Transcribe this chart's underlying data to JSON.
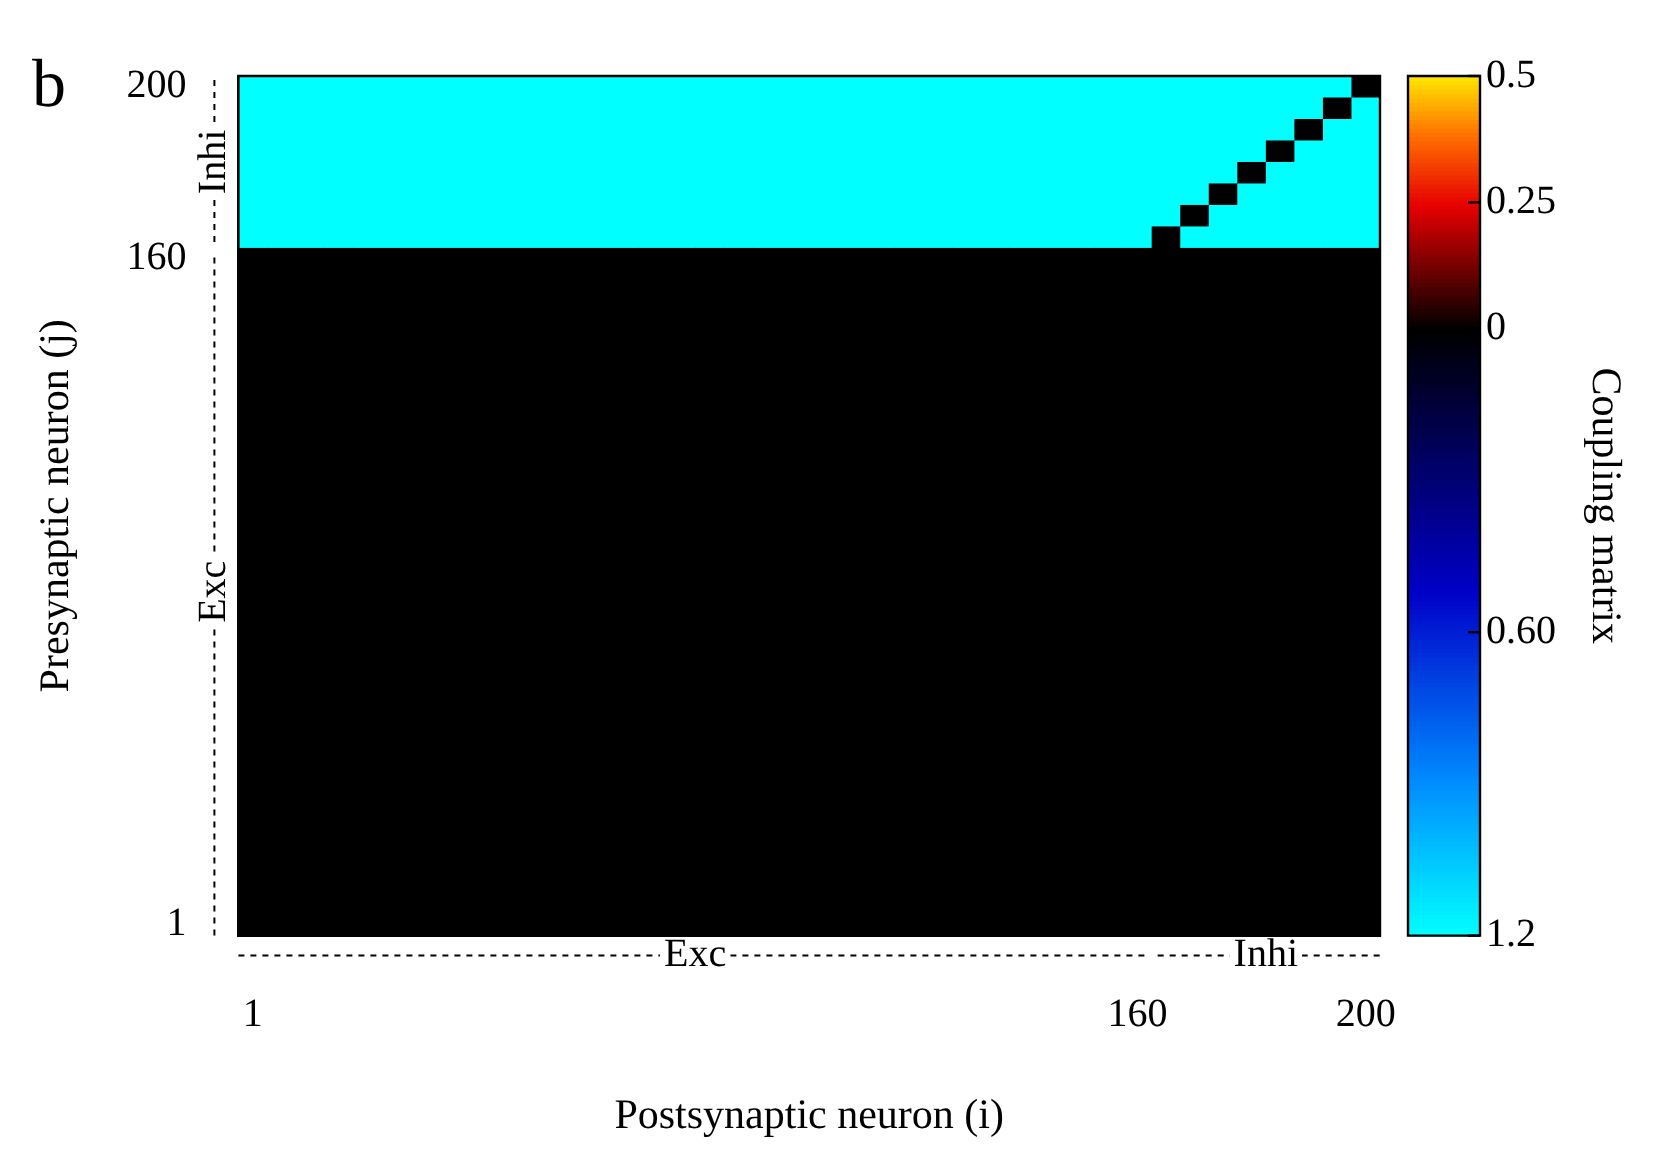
{
  "chart_data": {
    "type": "heatmap",
    "xlabel": "Postsynaptic neuron (i)",
    "ylabel": "Presynaptic neuron (j)",
    "clabel": "Coupling matrix",
    "annotations": [
      "b",
      "Exc",
      "Inhi",
      "Exc",
      "Inhi"
    ],
    "categories": [
      "1",
      null,
      null,
      null,
      null,
      null,
      null,
      null,
      null,
      null,
      null,
      null,
      null,
      null,
      null,
      null,
      null,
      null,
      null,
      null,
      null,
      null,
      null,
      null,
      null,
      null,
      null,
      null,
      null,
      null,
      null,
      "160",
      null,
      null,
      null,
      null,
      null,
      null,
      null,
      "200"
    ],
    "y_categories": [
      "200",
      null,
      null,
      null,
      null,
      null,
      null,
      null,
      "160",
      null,
      null,
      null,
      null,
      null,
      null,
      null,
      null,
      null,
      null,
      null,
      null,
      null,
      null,
      null,
      null,
      null,
      null,
      null,
      null,
      null,
      null,
      null,
      null,
      null,
      null,
      null,
      null,
      null,
      null,
      "1"
    ],
    "clim": [
      -1.2,
      0.5
    ],
    "cticks": [
      {
        "value": -1.2,
        "label": "1.2"
      },
      {
        "value": -0.6,
        "label": "0.60"
      },
      0,
      0.25,
      0.5
    ],
    "cells": [
      [
        -1.2,
        -1.2,
        -1.2,
        -1.2,
        -1.2,
        -1.2,
        -1.2,
        -1.2,
        -1.2,
        -1.2,
        -1.2,
        -1.2,
        -1.2,
        -1.2,
        -1.2,
        -1.2,
        -1.2,
        -1.2,
        -1.2,
        -1.2,
        -1.2,
        -1.2,
        -1.2,
        -1.2,
        -1.2,
        -1.2,
        -1.2,
        -1.2,
        -1.2,
        -1.2,
        -1.2,
        -1.2,
        -1.2,
        -1.2,
        -1.2,
        -1.2,
        -1.2,
        -1.2,
        -1.2,
        0
      ],
      [
        -1.2,
        -1.2,
        -1.2,
        -1.2,
        -1.2,
        -1.2,
        -1.2,
        -1.2,
        -1.2,
        -1.2,
        -1.2,
        -1.2,
        -1.2,
        -1.2,
        -1.2,
        -1.2,
        -1.2,
        -1.2,
        -1.2,
        -1.2,
        -1.2,
        -1.2,
        -1.2,
        -1.2,
        -1.2,
        -1.2,
        -1.2,
        -1.2,
        -1.2,
        -1.2,
        -1.2,
        -1.2,
        -1.2,
        -1.2,
        -1.2,
        -1.2,
        -1.2,
        -1.2,
        0,
        -1.2
      ],
      [
        -1.2,
        -1.2,
        -1.2,
        -1.2,
        -1.2,
        -1.2,
        -1.2,
        -1.2,
        -1.2,
        -1.2,
        -1.2,
        -1.2,
        -1.2,
        -1.2,
        -1.2,
        -1.2,
        -1.2,
        -1.2,
        -1.2,
        -1.2,
        -1.2,
        -1.2,
        -1.2,
        -1.2,
        -1.2,
        -1.2,
        -1.2,
        -1.2,
        -1.2,
        -1.2,
        -1.2,
        -1.2,
        -1.2,
        -1.2,
        -1.2,
        -1.2,
        -1.2,
        0,
        -1.2,
        -1.2
      ],
      [
        -1.2,
        -1.2,
        -1.2,
        -1.2,
        -1.2,
        -1.2,
        -1.2,
        -1.2,
        -1.2,
        -1.2,
        -1.2,
        -1.2,
        -1.2,
        -1.2,
        -1.2,
        -1.2,
        -1.2,
        -1.2,
        -1.2,
        -1.2,
        -1.2,
        -1.2,
        -1.2,
        -1.2,
        -1.2,
        -1.2,
        -1.2,
        -1.2,
        -1.2,
        -1.2,
        -1.2,
        -1.2,
        -1.2,
        -1.2,
        -1.2,
        -1.2,
        0,
        -1.2,
        -1.2,
        -1.2
      ],
      [
        -1.2,
        -1.2,
        -1.2,
        -1.2,
        -1.2,
        -1.2,
        -1.2,
        -1.2,
        -1.2,
        -1.2,
        -1.2,
        -1.2,
        -1.2,
        -1.2,
        -1.2,
        -1.2,
        -1.2,
        -1.2,
        -1.2,
        -1.2,
        -1.2,
        -1.2,
        -1.2,
        -1.2,
        -1.2,
        -1.2,
        -1.2,
        -1.2,
        -1.2,
        -1.2,
        -1.2,
        -1.2,
        -1.2,
        -1.2,
        -1.2,
        0,
        -1.2,
        -1.2,
        -1.2,
        -1.2
      ],
      [
        -1.2,
        -1.2,
        -1.2,
        -1.2,
        -1.2,
        -1.2,
        -1.2,
        -1.2,
        -1.2,
        -1.2,
        -1.2,
        -1.2,
        -1.2,
        -1.2,
        -1.2,
        -1.2,
        -1.2,
        -1.2,
        -1.2,
        -1.2,
        -1.2,
        -1.2,
        -1.2,
        -1.2,
        -1.2,
        -1.2,
        -1.2,
        -1.2,
        -1.2,
        -1.2,
        -1.2,
        -1.2,
        -1.2,
        -1.2,
        0,
        -1.2,
        -1.2,
        -1.2,
        -1.2,
        -1.2
      ],
      [
        -1.2,
        -1.2,
        -1.2,
        -1.2,
        -1.2,
        -1.2,
        -1.2,
        -1.2,
        -1.2,
        -1.2,
        -1.2,
        -1.2,
        -1.2,
        -1.2,
        -1.2,
        -1.2,
        -1.2,
        -1.2,
        -1.2,
        -1.2,
        -1.2,
        -1.2,
        -1.2,
        -1.2,
        -1.2,
        -1.2,
        -1.2,
        -1.2,
        -1.2,
        -1.2,
        -1.2,
        -1.2,
        -1.2,
        0,
        -1.2,
        -1.2,
        -1.2,
        -1.2,
        -1.2,
        -1.2
      ],
      [
        -1.2,
        -1.2,
        -1.2,
        -1.2,
        -1.2,
        -1.2,
        -1.2,
        -1.2,
        -1.2,
        -1.2,
        -1.2,
        -1.2,
        -1.2,
        -1.2,
        -1.2,
        -1.2,
        -1.2,
        -1.2,
        -1.2,
        -1.2,
        -1.2,
        -1.2,
        -1.2,
        -1.2,
        -1.2,
        -1.2,
        -1.2,
        -1.2,
        -1.2,
        -1.2,
        -1.2,
        -1.2,
        0,
        -1.2,
        -1.2,
        -1.2,
        -1.2,
        -1.2,
        -1.2,
        -1.2
      ],
      [
        0,
        0,
        0,
        0,
        0,
        0,
        0,
        0,
        0,
        0,
        0,
        0,
        0,
        0,
        0,
        0,
        0,
        0,
        0,
        0,
        0,
        0,
        0,
        0,
        0,
        0,
        0,
        0,
        0,
        0,
        0,
        0,
        0,
        0,
        0,
        0,
        0,
        0,
        0,
        0
      ],
      [
        0,
        0,
        0,
        0,
        0,
        0,
        0,
        0,
        0,
        0,
        0,
        0,
        0,
        0,
        0,
        0,
        0,
        0,
        0,
        0,
        0,
        0,
        0,
        0,
        0,
        0,
        0,
        0,
        0,
        0,
        0,
        0,
        0,
        0,
        0,
        0,
        0,
        0,
        0,
        0
      ],
      [
        0,
        0,
        0,
        0,
        0,
        0,
        0,
        0,
        0,
        0,
        0,
        0,
        0,
        0,
        0,
        0,
        0,
        0,
        0,
        0,
        0,
        0,
        0,
        0,
        0,
        0,
        0,
        0,
        0,
        0,
        0,
        0,
        0,
        0,
        0,
        0,
        0,
        0,
        0,
        0
      ],
      [
        0,
        0,
        0,
        0,
        0,
        0,
        0,
        0,
        0,
        0,
        0,
        0,
        0,
        0,
        0,
        0,
        0,
        0,
        0,
        0,
        0,
        0,
        0,
        0,
        0,
        0,
        0,
        0,
        0,
        0,
        0,
        0,
        0,
        0,
        0,
        0,
        0,
        0,
        0,
        0
      ],
      [
        0,
        0,
        0,
        0,
        0,
        0,
        0,
        0,
        0,
        0,
        0,
        0,
        0,
        0,
        0,
        0,
        0,
        0,
        0,
        0,
        0,
        0,
        0,
        0,
        0,
        0,
        0,
        0,
        0,
        0,
        0,
        0,
        0,
        0,
        0,
        0,
        0,
        0,
        0,
        0
      ],
      [
        0,
        0,
        0,
        0,
        0,
        0,
        0,
        0,
        0,
        0,
        0,
        0,
        0,
        0,
        0,
        0,
        0,
        0,
        0,
        0,
        0,
        0,
        0,
        0,
        0,
        0,
        0,
        0,
        0,
        0,
        0,
        0,
        0,
        0,
        0,
        0,
        0,
        0,
        0,
        0
      ],
      [
        0,
        0,
        0,
        0,
        0,
        0,
        0,
        0,
        0,
        0,
        0,
        0,
        0,
        0,
        0,
        0,
        0,
        0,
        0,
        0,
        0,
        0,
        0,
        0,
        0,
        0,
        0,
        0,
        0,
        0,
        0,
        0,
        0,
        0,
        0,
        0,
        0,
        0,
        0,
        0
      ],
      [
        0,
        0,
        0,
        0,
        0,
        0,
        0,
        0,
        0,
        0,
        0,
        0,
        0,
        0,
        0,
        0,
        0,
        0,
        0,
        0,
        0,
        0,
        0,
        0,
        0,
        0,
        0,
        0,
        0,
        0,
        0,
        0,
        0,
        0,
        0,
        0,
        0,
        0,
        0,
        0
      ],
      [
        0,
        0,
        0,
        0,
        0,
        0,
        0,
        0,
        0,
        0,
        0,
        0,
        0,
        0,
        0,
        0,
        0,
        0,
        0,
        0,
        0,
        0,
        0,
        0,
        0,
        0,
        0,
        0,
        0,
        0,
        0,
        0,
        0,
        0,
        0,
        0,
        0,
        0,
        0,
        0
      ],
      [
        0,
        0,
        0,
        0,
        0,
        0,
        0,
        0,
        0,
        0,
        0,
        0,
        0,
        0,
        0,
        0,
        0,
        0,
        0,
        0,
        0,
        0,
        0,
        0,
        0,
        0,
        0,
        0,
        0,
        0,
        0,
        0,
        0,
        0,
        0,
        0,
        0,
        0,
        0,
        0
      ],
      [
        0,
        0,
        0,
        0,
        0,
        0,
        0,
        0,
        0,
        0,
        0,
        0,
        0,
        0,
        0,
        0,
        0,
        0,
        0,
        0,
        0,
        0,
        0,
        0,
        0,
        0,
        0,
        0,
        0,
        0,
        0,
        0,
        0,
        0,
        0,
        0,
        0,
        0,
        0,
        0
      ],
      [
        0,
        0,
        0,
        0,
        0,
        0,
        0,
        0,
        0,
        0,
        0,
        0,
        0,
        0,
        0,
        0,
        0,
        0,
        0,
        0,
        0,
        0,
        0,
        0,
        0,
        0,
        0,
        0,
        0,
        0,
        0,
        0,
        0,
        0,
        0,
        0,
        0,
        0,
        0,
        0
      ],
      [
        0,
        0,
        0,
        0,
        0,
        0,
        0,
        0,
        0,
        0,
        0,
        0,
        0,
        0,
        0,
        0,
        0,
        0,
        0,
        0,
        0,
        0,
        0,
        0,
        0,
        0,
        0,
        0,
        0,
        0,
        0,
        0,
        0,
        0,
        0,
        0,
        0,
        0,
        0,
        0
      ],
      [
        0,
        0,
        0,
        0,
        0,
        0,
        0,
        0,
        0,
        0,
        0,
        0,
        0,
        0,
        0,
        0,
        0,
        0,
        0,
        0,
        0,
        0,
        0,
        0,
        0,
        0,
        0,
        0,
        0,
        0,
        0,
        0,
        0,
        0,
        0,
        0,
        0,
        0,
        0,
        0
      ],
      [
        0,
        0,
        0,
        0,
        0,
        0,
        0,
        0,
        0,
        0,
        0,
        0,
        0,
        0,
        0,
        0,
        0,
        0,
        0,
        0,
        0,
        0,
        0,
        0,
        0,
        0,
        0,
        0,
        0,
        0,
        0,
        0,
        0,
        0,
        0,
        0,
        0,
        0,
        0,
        0
      ],
      [
        0,
        0,
        0,
        0,
        0,
        0,
        0,
        0,
        0,
        0,
        0,
        0,
        0,
        0,
        0,
        0,
        0,
        0,
        0,
        0,
        0,
        0,
        0,
        0,
        0,
        0,
        0,
        0,
        0,
        0,
        0,
        0,
        0,
        0,
        0,
        0,
        0,
        0,
        0,
        0
      ],
      [
        0,
        0,
        0,
        0,
        0,
        0,
        0,
        0,
        0,
        0,
        0,
        0,
        0,
        0,
        0,
        0,
        0,
        0,
        0,
        0,
        0,
        0,
        0,
        0,
        0,
        0,
        0,
        0,
        0,
        0,
        0,
        0,
        0,
        0,
        0,
        0,
        0,
        0,
        0,
        0
      ],
      [
        0,
        0,
        0,
        0,
        0,
        0,
        0,
        0,
        0,
        0,
        0,
        0,
        0,
        0,
        0,
        0,
        0,
        0,
        0,
        0,
        0,
        0,
        0,
        0,
        0,
        0,
        0,
        0,
        0,
        0,
        0,
        0,
        0,
        0,
        0,
        0,
        0,
        0,
        0,
        0
      ],
      [
        0,
        0,
        0,
        0,
        0,
        0,
        0,
        0,
        0,
        0,
        0,
        0,
        0,
        0,
        0,
        0,
        0,
        0,
        0,
        0,
        0,
        0,
        0,
        0,
        0,
        0,
        0,
        0,
        0,
        0,
        0,
        0,
        0,
        0,
        0,
        0,
        0,
        0,
        0,
        0
      ],
      [
        0,
        0,
        0,
        0,
        0,
        0,
        0,
        0,
        0,
        0,
        0,
        0,
        0,
        0,
        0,
        0,
        0,
        0,
        0,
        0,
        0,
        0,
        0,
        0,
        0,
        0,
        0,
        0,
        0,
        0,
        0,
        0,
        0,
        0,
        0,
        0,
        0,
        0,
        0,
        0
      ],
      [
        0,
        0,
        0,
        0,
        0,
        0,
        0,
        0,
        0,
        0,
        0,
        0,
        0,
        0,
        0,
        0,
        0,
        0,
        0,
        0,
        0,
        0,
        0,
        0,
        0,
        0,
        0,
        0,
        0,
        0,
        0,
        0,
        0,
        0,
        0,
        0,
        0,
        0,
        0,
        0
      ],
      [
        0,
        0,
        0,
        0,
        0,
        0,
        0,
        0,
        0,
        0,
        0,
        0,
        0,
        0,
        0,
        0,
        0,
        0,
        0,
        0,
        0,
        0,
        0,
        0,
        0,
        0,
        0,
        0,
        0,
        0,
        0,
        0,
        0,
        0,
        0,
        0,
        0,
        0,
        0,
        0
      ],
      [
        0,
        0,
        0,
        0,
        0,
        0,
        0,
        0,
        0,
        0,
        0,
        0,
        0,
        0,
        0,
        0,
        0,
        0,
        0,
        0,
        0,
        0,
        0,
        0,
        0,
        0,
        0,
        0,
        0,
        0,
        0,
        0,
        0,
        0,
        0,
        0,
        0,
        0,
        0,
        0
      ],
      [
        0,
        0,
        0,
        0,
        0,
        0,
        0,
        0,
        0,
        0,
        0,
        0,
        0,
        0,
        0,
        0,
        0,
        0,
        0,
        0,
        0,
        0,
        0,
        0,
        0,
        0,
        0,
        0,
        0,
        0,
        0,
        0,
        0,
        0,
        0,
        0,
        0,
        0,
        0,
        0
      ],
      [
        0,
        0,
        0,
        0,
        0,
        0,
        0,
        0,
        0,
        0,
        0,
        0,
        0,
        0,
        0,
        0,
        0,
        0,
        0,
        0,
        0,
        0,
        0,
        0,
        0,
        0,
        0,
        0,
        0,
        0,
        0,
        0,
        0,
        0,
        0,
        0,
        0,
        0,
        0,
        0
      ],
      [
        0,
        0,
        0,
        0,
        0,
        0,
        0,
        0,
        0,
        0,
        0,
        0,
        0,
        0,
        0,
        0,
        0,
        0,
        0,
        0,
        0,
        0,
        0,
        0,
        0,
        0,
        0,
        0,
        0,
        0,
        0,
        0,
        0,
        0,
        0,
        0,
        0,
        0,
        0,
        0
      ],
      [
        0,
        0,
        0,
        0,
        0,
        0,
        0,
        0,
        0,
        0,
        0,
        0,
        0,
        0,
        0,
        0,
        0,
        0,
        0,
        0,
        0,
        0,
        0,
        0,
        0,
        0,
        0,
        0,
        0,
        0,
        0,
        0,
        0,
        0,
        0,
        0,
        0,
        0,
        0,
        0
      ],
      [
        0,
        0,
        0,
        0,
        0,
        0,
        0,
        0,
        0,
        0,
        0,
        0,
        0,
        0,
        0,
        0,
        0,
        0,
        0,
        0,
        0,
        0,
        0,
        0,
        0,
        0,
        0,
        0,
        0,
        0,
        0,
        0,
        0,
        0,
        0,
        0,
        0,
        0,
        0,
        0
      ],
      [
        0,
        0,
        0,
        0,
        0,
        0,
        0,
        0,
        0,
        0,
        0,
        0,
        0,
        0,
        0,
        0,
        0,
        0,
        0,
        0,
        0,
        0,
        0,
        0,
        0,
        0,
        0,
        0,
        0,
        0,
        0,
        0,
        0,
        0,
        0,
        0,
        0,
        0,
        0,
        0
      ],
      [
        0,
        0,
        0,
        0,
        0,
        0,
        0,
        0,
        0,
        0,
        0,
        0,
        0,
        0,
        0,
        0,
        0,
        0,
        0,
        0,
        0,
        0,
        0,
        0,
        0,
        0,
        0,
        0,
        0,
        0,
        0,
        0,
        0,
        0,
        0,
        0,
        0,
        0,
        0,
        0
      ],
      [
        0,
        0,
        0,
        0,
        0,
        0,
        0,
        0,
        0,
        0,
        0,
        0,
        0,
        0,
        0,
        0,
        0,
        0,
        0,
        0,
        0,
        0,
        0,
        0,
        0,
        0,
        0,
        0,
        0,
        0,
        0,
        0,
        0,
        0,
        0,
        0,
        0,
        0,
        0,
        0
      ],
      [
        0,
        0,
        0,
        0,
        0,
        0,
        0,
        0,
        0,
        0,
        0,
        0,
        0,
        0,
        0,
        0,
        0,
        0,
        0,
        0,
        0,
        0,
        0,
        0,
        0,
        0,
        0,
        0,
        0,
        0,
        0,
        0,
        0,
        0,
        0,
        0,
        0,
        0,
        0,
        0
      ]
    ]
  }
}
